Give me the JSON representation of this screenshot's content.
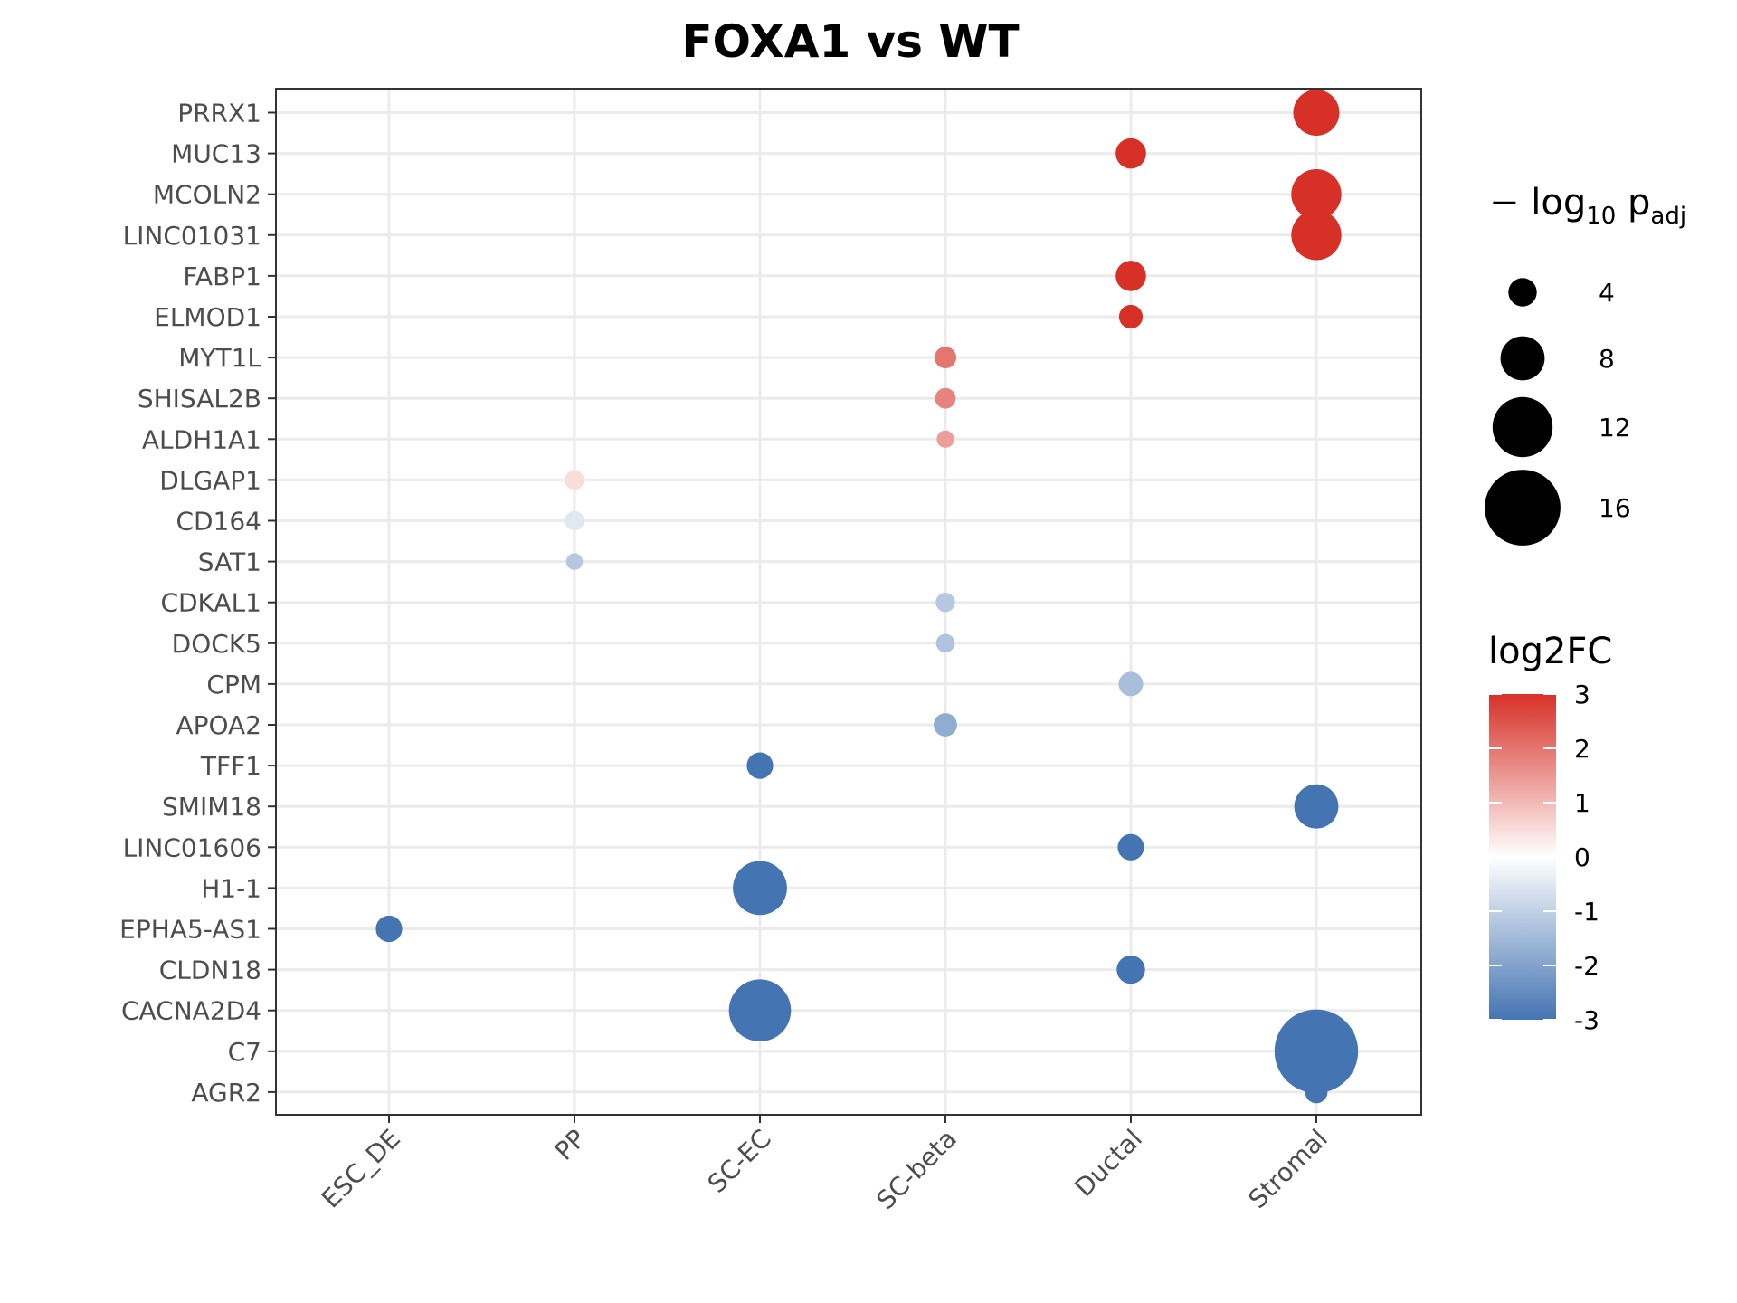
{
  "chart_data": {
    "type": "scatter",
    "title": "FOXA1 vs WT",
    "x_categories": [
      "ESC_DE",
      "PP",
      "SC-EC",
      "SC-beta",
      "Ductal",
      "Stromal"
    ],
    "y_categories": [
      "PRRX1",
      "MUC13",
      "MCOLN2",
      "LINC01031",
      "FABP1",
      "ELMOD1",
      "MYT1L",
      "SHISAL2B",
      "ALDH1A1",
      "DLGAP1",
      "CD164",
      "SAT1",
      "CDKAL1",
      "DOCK5",
      "CPM",
      "APOA2",
      "TFF1",
      "SMIM18",
      "LINC01606",
      "H1-1",
      "EPHA5-AS1",
      "CLDN18",
      "CACNA2D4",
      "C7",
      "AGR2"
    ],
    "points": [
      {
        "gene": "PRRX1",
        "cell_type": "Stromal",
        "neg_log10_padj": 8.5,
        "log2FC": 3
      },
      {
        "gene": "MUC13",
        "cell_type": "Ductal",
        "neg_log10_padj": 4.5,
        "log2FC": 3
      },
      {
        "gene": "MCOLN2",
        "cell_type": "Stromal",
        "neg_log10_padj": 9.5,
        "log2FC": 3
      },
      {
        "gene": "LINC01031",
        "cell_type": "Stromal",
        "neg_log10_padj": 9.5,
        "log2FC": 3
      },
      {
        "gene": "FABP1",
        "cell_type": "Ductal",
        "neg_log10_padj": 4.5,
        "log2FC": 3
      },
      {
        "gene": "ELMOD1",
        "cell_type": "Ductal",
        "neg_log10_padj": 2.8,
        "log2FC": 3
      },
      {
        "gene": "MYT1L",
        "cell_type": "SC-beta",
        "neg_log10_padj": 2.3,
        "log2FC": 2.0
      },
      {
        "gene": "SHISAL2B",
        "cell_type": "SC-beta",
        "neg_log10_padj": 2.0,
        "log2FC": 1.8
      },
      {
        "gene": "ALDH1A1",
        "cell_type": "SC-beta",
        "neg_log10_padj": 1.2,
        "log2FC": 1.4
      },
      {
        "gene": "DLGAP1",
        "cell_type": "PP",
        "neg_log10_padj": 1.7,
        "log2FC": 0.5
      },
      {
        "gene": "CD164",
        "cell_type": "PP",
        "neg_log10_padj": 1.7,
        "log2FC": -0.5
      },
      {
        "gene": "SAT1",
        "cell_type": "PP",
        "neg_log10_padj": 1.0,
        "log2FC": -1.2
      },
      {
        "gene": "CDKAL1",
        "cell_type": "SC-beta",
        "neg_log10_padj": 1.7,
        "log2FC": -1.2
      },
      {
        "gene": "DOCK5",
        "cell_type": "SC-beta",
        "neg_log10_padj": 1.5,
        "log2FC": -1.3
      },
      {
        "gene": "CPM",
        "cell_type": "Ductal",
        "neg_log10_padj": 3.0,
        "log2FC": -1.4
      },
      {
        "gene": "APOA2",
        "cell_type": "SC-beta",
        "neg_log10_padj": 2.7,
        "log2FC": -1.8
      },
      {
        "gene": "TFF1",
        "cell_type": "SC-EC",
        "neg_log10_padj": 3.5,
        "log2FC": -3
      },
      {
        "gene": "SMIM18",
        "cell_type": "Stromal",
        "neg_log10_padj": 8.0,
        "log2FC": -3
      },
      {
        "gene": "LINC01606",
        "cell_type": "Ductal",
        "neg_log10_padj": 3.5,
        "log2FC": -3
      },
      {
        "gene": "H1-1",
        "cell_type": "SC-EC",
        "neg_log10_padj": 10.5,
        "log2FC": -3
      },
      {
        "gene": "EPHA5-AS1",
        "cell_type": "ESC_DE",
        "neg_log10_padj": 3.5,
        "log2FC": -3
      },
      {
        "gene": "CLDN18",
        "cell_type": "Ductal",
        "neg_log10_padj": 4.0,
        "log2FC": -3
      },
      {
        "gene": "CACNA2D4",
        "cell_type": "SC-EC",
        "neg_log10_padj": 12.5,
        "log2FC": -3
      },
      {
        "gene": "C7",
        "cell_type": "Stromal",
        "neg_log10_padj": 18.0,
        "log2FC": -3
      },
      {
        "gene": "AGR2",
        "cell_type": "Stromal",
        "neg_log10_padj": 2.5,
        "log2FC": -3
      }
    ],
    "size_legend": {
      "title": "− log₁₀ p_adj",
      "values": [
        4,
        8,
        12,
        16
      ]
    },
    "color_legend": {
      "title": "log2FC",
      "ticks": [
        3,
        2,
        1,
        0,
        -1,
        -2,
        -3
      ],
      "low_color": "#4574b3",
      "mid_color": "#ffffff",
      "high_color": "#d73027",
      "range": [
        -3,
        3
      ]
    },
    "grid": true,
    "legend_placement": "right"
  }
}
